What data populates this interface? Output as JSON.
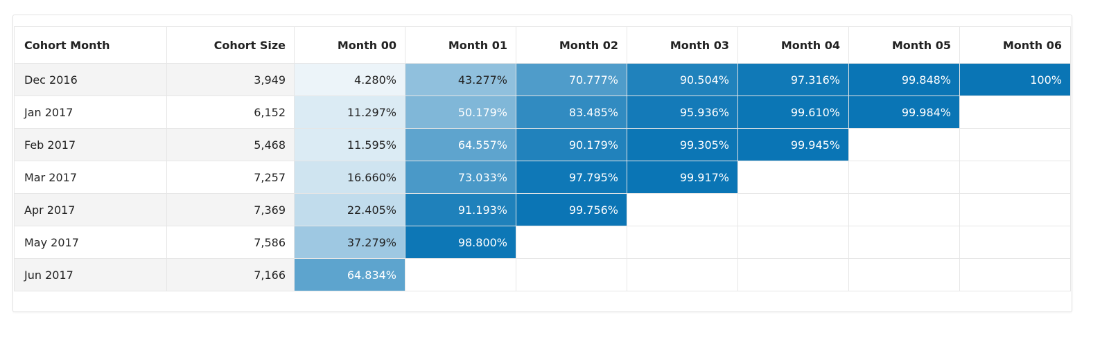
{
  "table": {
    "columns": [
      "Cohort Month",
      "Cohort Size",
      "Month 00",
      "Month 01",
      "Month 02",
      "Month 03",
      "Month 04",
      "Month 05",
      "Month 06"
    ],
    "rows": [
      [
        "Dec 2016",
        "3,949",
        "4.280%",
        "43.277%",
        "70.777%",
        "90.504%",
        "97.316%",
        "99.848%",
        "100%"
      ],
      [
        "Jan 2017",
        "6,152",
        "11.297%",
        "50.179%",
        "83.485%",
        "95.936%",
        "99.610%",
        "99.984%"
      ],
      [
        "Feb 2017",
        "5,468",
        "11.595%",
        "64.557%",
        "90.179%",
        "99.305%",
        "99.945%"
      ],
      [
        "Mar 2017",
        "7,257",
        "16.660%",
        "73.033%",
        "97.795%",
        "99.917%"
      ],
      [
        "Apr 2017",
        "7,369",
        "22.405%",
        "91.193%",
        "99.756%"
      ],
      [
        "May 2017",
        "7,586",
        "37.279%",
        "98.800%"
      ],
      [
        "Jun 2017",
        "7,166",
        "64.834%"
      ]
    ]
  }
}
